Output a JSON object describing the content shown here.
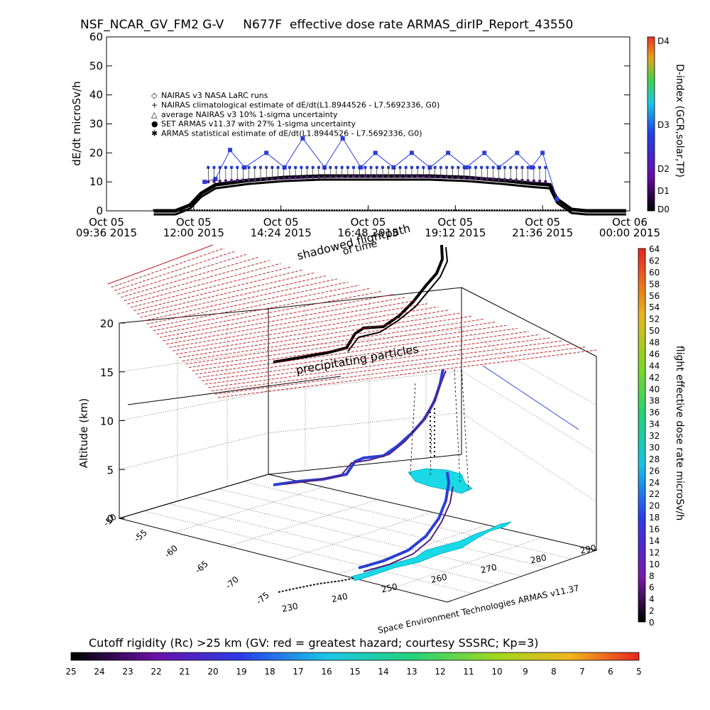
{
  "title": "NSF_NCAR_GV_FM2 G-V     N677F  effective dose rate ARMAS_dirIP_Report_43550",
  "credit": "Space Environment Technologies ARMAS v11.37",
  "colors": {
    "nairas_line": "#000000",
    "set_armas": "#2b3fd6",
    "purple_points": "#55207e",
    "shadow_grid": "#c0282c",
    "ground_track": "#19d9e6"
  },
  "chart_data": [
    {
      "type": "scatter",
      "title": "",
      "xlabel": "",
      "ylabel": "dE/dt microSv/h",
      "ylim": [
        0,
        60
      ],
      "y_ticks": [
        "0",
        "10",
        "20",
        "30",
        "40",
        "50",
        "60"
      ],
      "x_ticks": [
        {
          "line1": "Oct 05",
          "line2": "09:36 2015"
        },
        {
          "line1": "Oct 05",
          "line2": "12:00 2015"
        },
        {
          "line1": "Oct 05",
          "line2": "14:24 2015"
        },
        {
          "line1": "Oct 05",
          "line2": "16:48 2015"
        },
        {
          "line1": "Oct 05",
          "line2": "19:12 2015"
        },
        {
          "line1": "Oct 05",
          "line2": "21:36 2015"
        },
        {
          "line1": "Oct 06",
          "line2": "00:00 2015"
        }
      ],
      "xlim_hours": [
        9.6,
        24.0
      ],
      "legend": [
        {
          "symbol": "◇",
          "label": "NAIRAS v3 NASA LaRC runs"
        },
        {
          "symbol": "+",
          "label": "NAIRAS climatological estimate of dE/dt(L1.8944526 - L7.5692336, G0)"
        },
        {
          "symbol": "△",
          "label": "average NAIRAS v3 10% 1-sigma uncertainty"
        },
        {
          "symbol": "●",
          "label": "SET ARMAS v11.37 with 27% 1-sigma uncertainty"
        },
        {
          "symbol": "✱",
          "label": "ARMAS statistical estimate of dE/dt(L1.8944526 - L7.5692336, G0)"
        }
      ],
      "legend_placement": "upper-left",
      "series": [
        {
          "name": "NAIRAS climatological estimate of dE/dt(L1.8944526 - L7.5692336, G0)",
          "x": [
            10.9,
            11.5,
            11.9,
            12.2,
            12.6,
            13.5,
            14.5,
            15.5,
            16.5,
            17.5,
            18.5,
            19.5,
            20.5,
            21.3,
            21.8,
            22.0,
            22.4,
            22.8,
            23.9
          ],
          "y": [
            0,
            0,
            2,
            6,
            9,
            10.5,
            11.5,
            12,
            12,
            12,
            12,
            11.5,
            10.5,
            9.5,
            9,
            4,
            0.5,
            0,
            0
          ]
        },
        {
          "name": "SET ARMAS v11.37 with 27% 1-sigma uncertainty",
          "x": [
            12.3,
            12.6,
            13.0,
            13.4,
            14.0,
            14.5,
            15.0,
            15.6,
            16.1,
            16.6,
            17.0,
            17.5,
            18.0,
            18.5,
            19.0,
            19.5,
            20.0,
            20.4,
            20.9,
            21.3,
            21.6,
            22.0
          ],
          "y": [
            10,
            11,
            21,
            15,
            20,
            15,
            25,
            15,
            25,
            15,
            20,
            15,
            20,
            15,
            20,
            15,
            20,
            15,
            20,
            15,
            20,
            4
          ]
        }
      ],
      "right_axis_label": "D-index (GCR,solar,TP)",
      "right_axis_ticks": [
        "D0",
        "D1",
        "D2",
        "D3",
        "D4"
      ]
    },
    {
      "type": "scatter",
      "title": "",
      "ylabel": "Altitude (km)",
      "z_ticks": [
        "0",
        "5",
        "10",
        "15",
        "20"
      ],
      "lat_ticks": [
        "-50",
        "-55",
        "-60",
        "-65",
        "-70",
        "-75"
      ],
      "lon_ticks": [
        "230",
        "240",
        "250",
        "260",
        "270",
        "280",
        "290"
      ],
      "annotations": [
        "shadowed flightpath",
        "of time",
        "precipitating particles"
      ],
      "colorbar_label": "flight effective dose rate microSv/h",
      "colorbar_ticks": [
        "0",
        "2",
        "4",
        "6",
        "8",
        "10",
        "12",
        "14",
        "16",
        "18",
        "20",
        "22",
        "24",
        "26",
        "28",
        "30",
        "32",
        "34",
        "36",
        "38",
        "40",
        "42",
        "44",
        "46",
        "48",
        "50",
        "52",
        "54",
        "56",
        "58",
        "60",
        "62",
        "64"
      ]
    }
  ],
  "cutoff": {
    "label": "Cutoff rigidity (Rc) >25 km (GV: red = greatest hazard; courtesy SSSRC; Kp=3)",
    "ticks": [
      "25",
      "24",
      "23",
      "22",
      "21",
      "20",
      "19",
      "18",
      "17",
      "16",
      "15",
      "14",
      "13",
      "12",
      "11",
      "10",
      "9",
      "8",
      "7",
      "6",
      "5"
    ]
  }
}
